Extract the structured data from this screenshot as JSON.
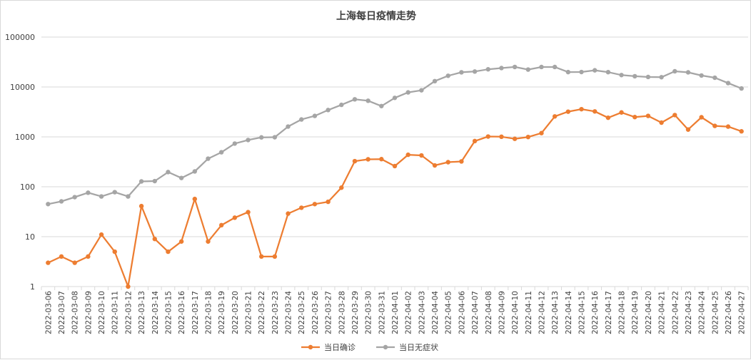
{
  "chart_data": {
    "type": "line",
    "title": "上海每日疫情走势",
    "y_scale": "log",
    "ylim": [
      1,
      100000
    ],
    "y_ticks": [
      "1",
      "10",
      "100",
      "1000",
      "10000",
      "100000"
    ],
    "grid": true,
    "legend_position": "bottom",
    "categories": [
      "2022-03-06",
      "2022-03-07",
      "2022-03-08",
      "2022-03-09",
      "2022-03-10",
      "2022-03-11",
      "2022-03-12",
      "2022-03-13",
      "2022-03-14",
      "2022-03-15",
      "2022-03-16",
      "2022-03-17",
      "2022-03-18",
      "2022-03-19",
      "2022-03-20",
      "2022-03-21",
      "2022-03-22",
      "2022-03-23",
      "2022-03-24",
      "2022-03-25",
      "2022-03-26",
      "2022-03-27",
      "2022-03-28",
      "2022-03-29",
      "2022-03-30",
      "2022-03-31",
      "2022-04-01",
      "2022-04-02",
      "2022-04-03",
      "2022-04-04",
      "2022-04-05",
      "2022-04-06",
      "2022-04-07",
      "2022-04-08",
      "2022-04-09",
      "2022-04-10",
      "2022-04-11",
      "2022-04-12",
      "2022-04-13",
      "2022-04-14",
      "2022-04-15",
      "2022-04-16",
      "2022-04-17",
      "2022-04-18",
      "2022-04-19",
      "2022-04-20",
      "2022-04-21",
      "2022-04-22",
      "2022-04-23",
      "2022-04-24",
      "2022-04-25",
      "2022-04-26",
      "2022-04-27"
    ],
    "series": [
      {
        "name": "当日确诊",
        "color": "#ED7D31",
        "values": [
          3,
          4,
          3,
          4,
          11,
          5,
          1,
          41,
          9,
          5,
          8,
          57,
          8,
          17,
          24,
          31,
          4,
          4,
          29,
          38,
          45,
          50,
          96,
          326,
          355,
          358,
          260,
          438,
          425,
          268,
          311,
          322,
          824,
          1015,
          1006,
          914,
          994,
          1189,
          2573,
          3200,
          3590,
          3238,
          2417,
          3084,
          2494,
          2634,
          1931,
          2736,
          1401,
          2472,
          1661,
          1606,
          1292
        ]
      },
      {
        "name": "当日无症状",
        "color": "#A5A5A5",
        "values": [
          45,
          51,
          62,
          76,
          64,
          78,
          64,
          128,
          130,
          197,
          150,
          203,
          366,
          492,
          734,
          865,
          977,
          983,
          1609,
          2231,
          2631,
          3450,
          4381,
          5656,
          5298,
          4144,
          6051,
          7788,
          8581,
          13086,
          16766,
          19660,
          20398,
          22609,
          23937,
          25173,
          22348,
          25146,
          25141,
          19872,
          19923,
          21582,
          19831,
          17332,
          16407,
          15861,
          15698,
          20634,
          19657,
          16983,
          15319,
          11956,
          9330
        ]
      }
    ]
  }
}
